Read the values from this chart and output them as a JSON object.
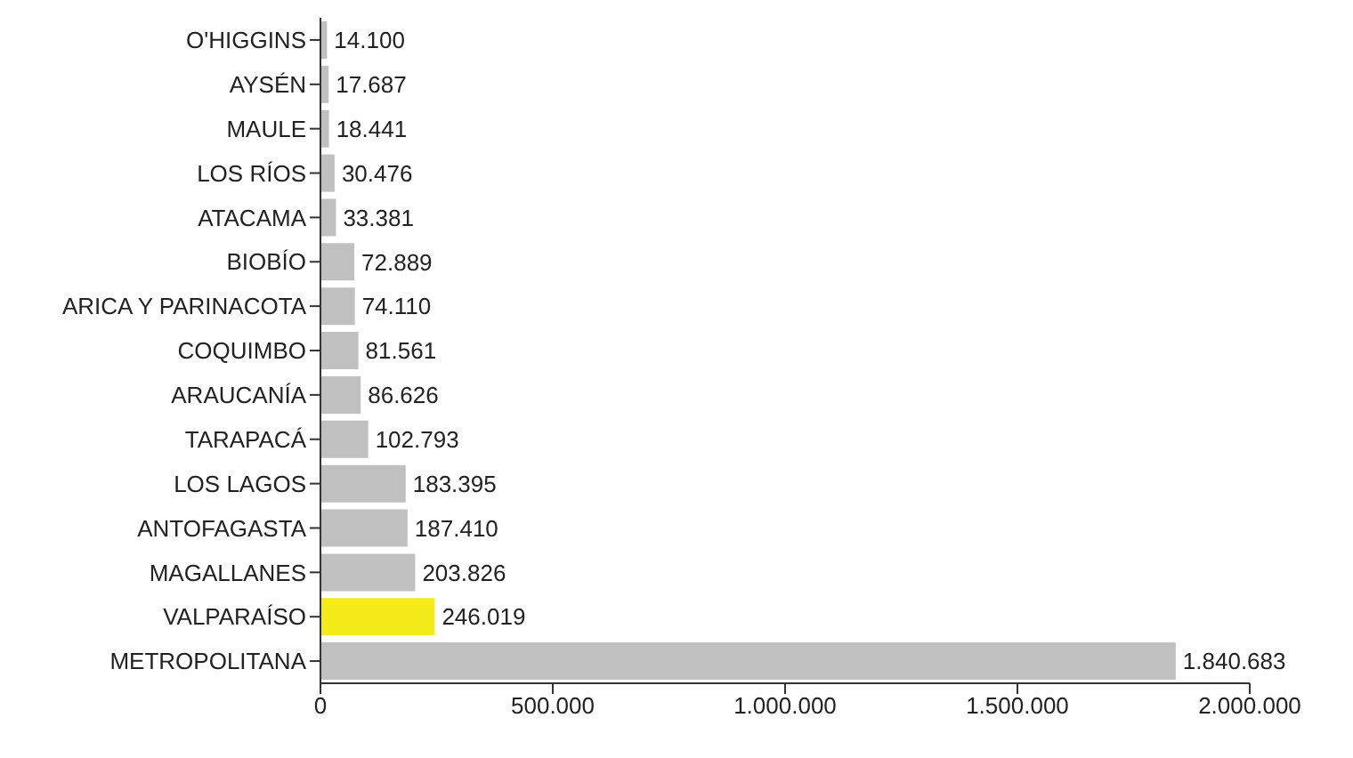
{
  "chart_data": {
    "type": "bar",
    "orientation": "horizontal",
    "categories": [
      "O'HIGGINS",
      "AYSÉN",
      "MAULE",
      "LOS RÍOS",
      "ATACAMA",
      "BIOBÍO",
      "ARICA Y PARINACOTA",
      "COQUIMBO",
      "ARAUCANÍA",
      "TARAPACÁ",
      "LOS LAGOS",
      "ANTOFAGASTA",
      "MAGALLANES",
      "VALPARAÍSO",
      "METROPOLITANA"
    ],
    "values": [
      14100,
      17687,
      18441,
      30476,
      33381,
      72889,
      74110,
      81561,
      86626,
      102793,
      183395,
      187410,
      203826,
      246019,
      1840683
    ],
    "value_labels": [
      "14.100",
      "17.687",
      "18.441",
      "30.476",
      "33.381",
      "72.889",
      "74.110",
      "81.561",
      "86.626",
      "102.793",
      "183.395",
      "187.410",
      "203.826",
      "246.019",
      "1.840.683"
    ],
    "colors": [
      "#c0c0c0",
      "#c0c0c0",
      "#c0c0c0",
      "#c0c0c0",
      "#c0c0c0",
      "#c0c0c0",
      "#c0c0c0",
      "#c0c0c0",
      "#c0c0c0",
      "#c0c0c0",
      "#c0c0c0",
      "#c0c0c0",
      "#c0c0c0",
      "#f5eb1a",
      "#c0c0c0"
    ],
    "xlim": [
      0,
      2000000
    ],
    "xticks": [
      0,
      {
        "value": 500000,
        "label": "500.000"
      },
      {
        "value": 1000000,
        "label": "1.000.000"
      },
      {
        "value": 1500000,
        "label": "1.500.000"
      },
      {
        "value": 2000000,
        "label": "2.000.000"
      }
    ],
    "grid": false,
    "legend": false
  }
}
